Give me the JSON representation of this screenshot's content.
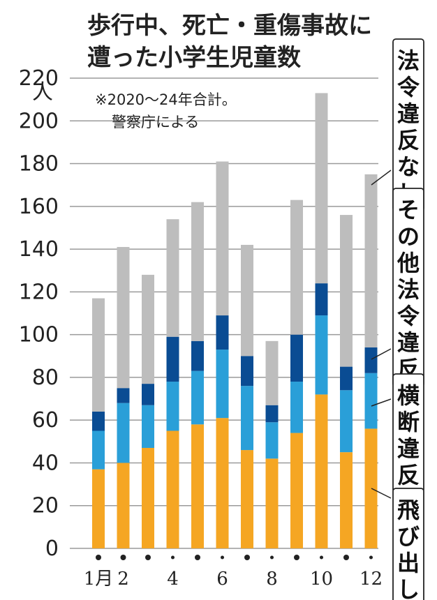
{
  "colors": {
    "tobidashi": "#F5A623",
    "oudan": "#2A9FD8",
    "sonota": "#0A4C93",
    "nashi": "#BDBDBD",
    "grid": "#9a9a9a",
    "text": "#222222"
  },
  "chart_data": {
    "type": "bar",
    "stacked": true,
    "title": [
      "歩行中、死亡・重傷事故に",
      "遭った小学生児童数"
    ],
    "ylabel": "人",
    "note": [
      "※2020～24年合計。",
      "警察庁による"
    ],
    "ylim": [
      0,
      220
    ],
    "yticks": [
      "0",
      "20",
      "40",
      "60",
      "80",
      "100",
      "120",
      "140",
      "160",
      "180",
      "200",
      "220"
    ],
    "categories": [
      "1",
      "2",
      "3",
      "4",
      "5",
      "6",
      "7",
      "8",
      "9",
      "10",
      "11",
      "12"
    ],
    "xtick_labels": [
      "1月",
      "2",
      "",
      "4",
      "",
      "6",
      "",
      "8",
      "",
      "10",
      "",
      "12"
    ],
    "series": [
      {
        "name": "飛び出し",
        "color_key": "tobidashi",
        "values": [
          37,
          40,
          47,
          55,
          58,
          61,
          46,
          42,
          54,
          72,
          45,
          56
        ]
      },
      {
        "name": "横断違反",
        "color_key": "oudan",
        "values": [
          18,
          28,
          20,
          23,
          25,
          32,
          30,
          17,
          24,
          37,
          29,
          26
        ]
      },
      {
        "name": "その他法令違反",
        "color_key": "sonota",
        "values": [
          9,
          7,
          10,
          21,
          14,
          16,
          14,
          8,
          22,
          15,
          11,
          12
        ]
      },
      {
        "name": "法令違反なし",
        "color_key": "nashi",
        "values": [
          53,
          66,
          51,
          55,
          65,
          72,
          52,
          30,
          63,
          89,
          71,
          81
        ]
      }
    ]
  }
}
